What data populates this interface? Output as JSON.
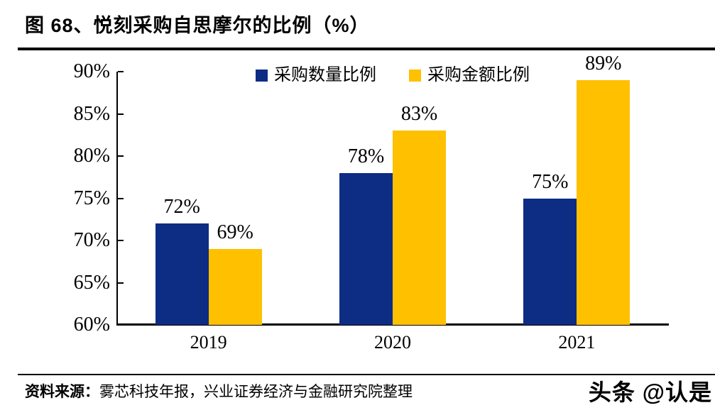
{
  "header": {
    "title": "图 68、悦刻采购自思摩尔的比例（%）"
  },
  "chart_data": {
    "type": "bar",
    "title": "图 68、悦刻采购自思摩尔的比例（%）",
    "categories": [
      "2019",
      "2020",
      "2021"
    ],
    "series": [
      {
        "name": "采购数量比例",
        "color": "#0D2C84",
        "values": [
          72,
          78,
          75
        ]
      },
      {
        "name": "采购金额比例",
        "color": "#FFC000",
        "values": [
          69,
          83,
          89
        ]
      }
    ],
    "value_suffix": "%",
    "ylim": [
      60,
      90
    ],
    "ytick_step": 5,
    "yticks": [
      "90%",
      "85%",
      "80%",
      "75%",
      "70%",
      "65%",
      "60%"
    ],
    "grid": false,
    "data_labels": true,
    "legend_position": "top-center",
    "axis_color": "#000000"
  },
  "footer": {
    "source_label": "资料来源：",
    "source_text": "雾芯科技年报，兴业证券经济与金融研究院整理",
    "watermark": "头条 @认是"
  }
}
